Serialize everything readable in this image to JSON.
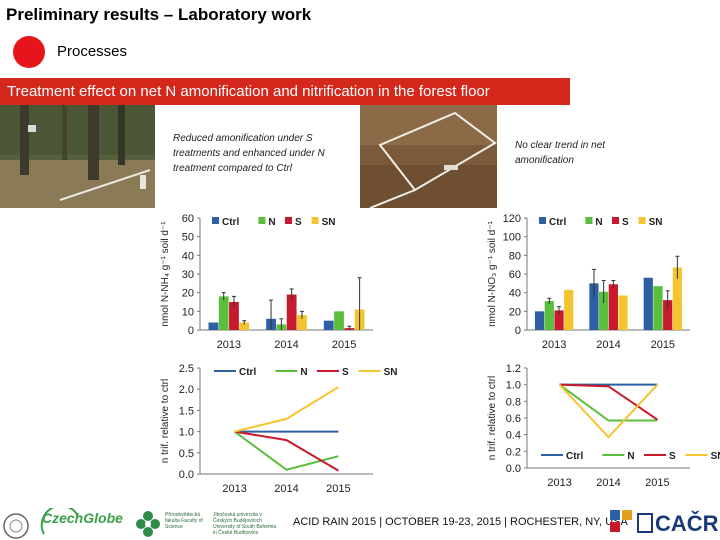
{
  "header": {
    "title": "Preliminary results – Laboratory work",
    "processes_label": "Processes",
    "banner": "Treatment effect on net N amonification and nitrification in the forest floor"
  },
  "notes": {
    "left": "Reduced amonification under S treatments  and enhanced under N treatment compared to Ctrl",
    "right": "No clear trend in net amonification"
  },
  "footer": {
    "text": "ACID RAIN 2015 | OCTOBER 19-23, 2015 | ROCHESTER, NY, USA",
    "logo_czechglobe": "CzechGlobe",
    "logo_cacr": "CAČR",
    "logo_faculty": "Přírodovědecká fakulta Faculty of Science",
    "logo_university": "Jihočeská univerzita v Českých Budějovicích University of South Bohemia in České Budějovice"
  },
  "colors": {
    "Ctrl": "#2e5fa3",
    "N": "#5abf3c",
    "S": "#c8192e",
    "SN": "#f4c430",
    "banner": "#d4281c",
    "dot": "#e8141c"
  },
  "chart_data": [
    {
      "id": "left-bar",
      "type": "bar",
      "categories": [
        "2013",
        "2014",
        "2015"
      ],
      "series": [
        {
          "name": "Ctrl",
          "values": [
            4,
            6,
            5
          ],
          "err": [
            0,
            10,
            0
          ]
        },
        {
          "name": "N",
          "values": [
            18,
            3,
            10
          ],
          "err": [
            2,
            3,
            0
          ]
        },
        {
          "name": "S",
          "values": [
            15,
            19,
            1
          ],
          "err": [
            3,
            3,
            1
          ]
        },
        {
          "name": "SN",
          "values": [
            4,
            8,
            11
          ],
          "err": [
            1,
            2,
            17
          ]
        }
      ],
      "ylabel": "nmol N-NH₄ g⁻¹ soil d⁻¹",
      "ylim": [
        0,
        60
      ],
      "yticks": [
        "0",
        "10",
        "20",
        "30",
        "40",
        "50",
        "60"
      ],
      "legend": "top"
    },
    {
      "id": "right-bar",
      "type": "bar",
      "categories": [
        "2013",
        "2014",
        "2015"
      ],
      "series": [
        {
          "name": "Ctrl",
          "values": [
            20,
            50,
            56
          ],
          "err": [
            0,
            15,
            0
          ]
        },
        {
          "name": "N",
          "values": [
            31,
            41,
            47
          ],
          "err": [
            3,
            12,
            0
          ]
        },
        {
          "name": "S",
          "values": [
            21,
            49,
            32
          ],
          "err": [
            4,
            4,
            10
          ]
        },
        {
          "name": "SN",
          "values": [
            43,
            37,
            67
          ],
          "err": [
            0,
            0,
            12
          ]
        }
      ],
      "ylabel": "nmol N-NO₃ g⁻¹ soil d⁻¹",
      "ylim": [
        0,
        120
      ],
      "yticks": [
        "0",
        "20",
        "40",
        "60",
        "80",
        "100",
        "120"
      ],
      "legend": "top"
    },
    {
      "id": "left-line",
      "type": "line",
      "x": [
        "2013",
        "2014",
        "2015"
      ],
      "series": [
        {
          "name": "Ctrl",
          "values": [
            1.0,
            1.0,
            1.0
          ]
        },
        {
          "name": "N",
          "values": [
            1.0,
            0.1,
            0.42
          ]
        },
        {
          "name": "S",
          "values": [
            1.0,
            0.8,
            0.08
          ]
        },
        {
          "name": "SN",
          "values": [
            1.0,
            1.3,
            2.05
          ]
        }
      ],
      "ylabel": "n trif. relative to ctrl",
      "ylim": [
        0,
        2.5
      ],
      "yticks": [
        "0.0",
        "0.5",
        "1.0",
        "1.5",
        "2.0",
        "2.5"
      ],
      "legend": "top"
    },
    {
      "id": "right-line",
      "type": "line",
      "x": [
        "2013",
        "2014",
        "2015"
      ],
      "series": [
        {
          "name": "Ctrl",
          "values": [
            1.0,
            1.0,
            1.0
          ]
        },
        {
          "name": "N",
          "values": [
            1.0,
            0.57,
            0.57
          ]
        },
        {
          "name": "S",
          "values": [
            1.0,
            0.98,
            0.58
          ]
        },
        {
          "name": "SN",
          "values": [
            1.0,
            0.37,
            1.0
          ]
        }
      ],
      "ylabel": "n trif. relative to ctrl",
      "ylim": [
        0,
        1.2
      ],
      "yticks": [
        "0.0",
        "0.2",
        "0.4",
        "0.6",
        "0.8",
        "1.0",
        "1.2"
      ],
      "legend": "bottom"
    }
  ]
}
